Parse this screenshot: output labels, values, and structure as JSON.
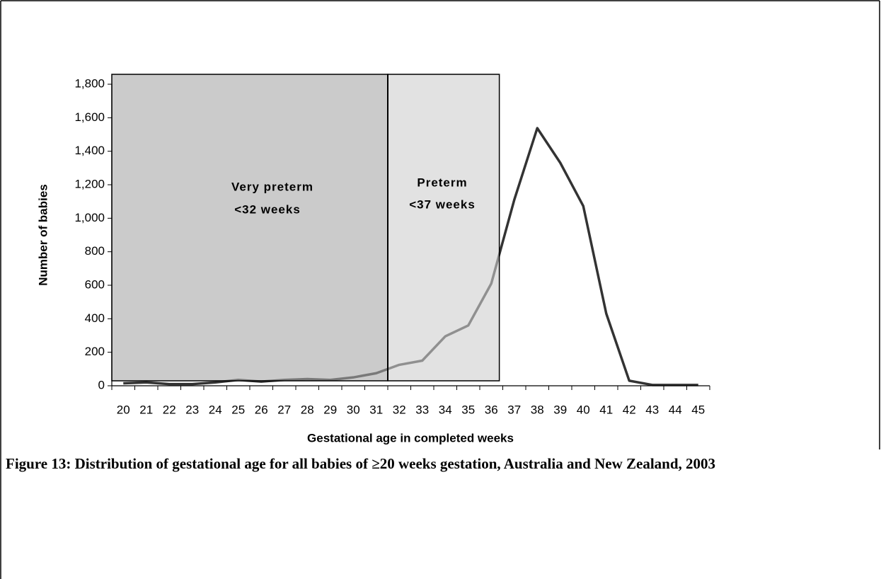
{
  "chart_data": {
    "type": "line",
    "caption": "Figure 13: Distribution of gestational age for all babies of ≥20 weeks gestation, Australia and New Zealand, 2003",
    "xlabel": "Gestational age in completed weeks",
    "ylabel": "Number of babies",
    "annotations": [
      "Very preterm",
      "<32 weeks",
      "Preterm",
      "<37 weeks"
    ],
    "categories": [
      "20",
      "21",
      "22",
      "23",
      "24",
      "25",
      "26",
      "27",
      "28",
      "29",
      "30",
      "31",
      "32",
      "33",
      "34",
      "35",
      "36",
      "37",
      "38",
      "39",
      "40",
      "41",
      "42",
      "43",
      "44",
      "45"
    ],
    "series": [
      {
        "color": "#333333",
        "values": [
          15,
          20,
          10,
          10,
          20,
          35,
          25,
          35,
          40,
          35,
          50,
          75,
          125,
          150,
          295,
          360,
          610,
          1110,
          1538,
          1331,
          1073,
          431,
          30,
          5,
          5,
          5
        ]
      }
    ],
    "ylim": [
      0,
      1800
    ],
    "yticks": [
      0,
      200,
      400,
      600,
      800,
      {
        "value": 1000,
        "label": "1,000"
      },
      {
        "value": 1200,
        "label": "1,200"
      },
      {
        "value": 1400,
        "label": "1,400"
      },
      {
        "value": 1600,
        "label": "1,600"
      },
      {
        "value": 1800,
        "label": "1,800"
      }
    ],
    "grid": false
  }
}
